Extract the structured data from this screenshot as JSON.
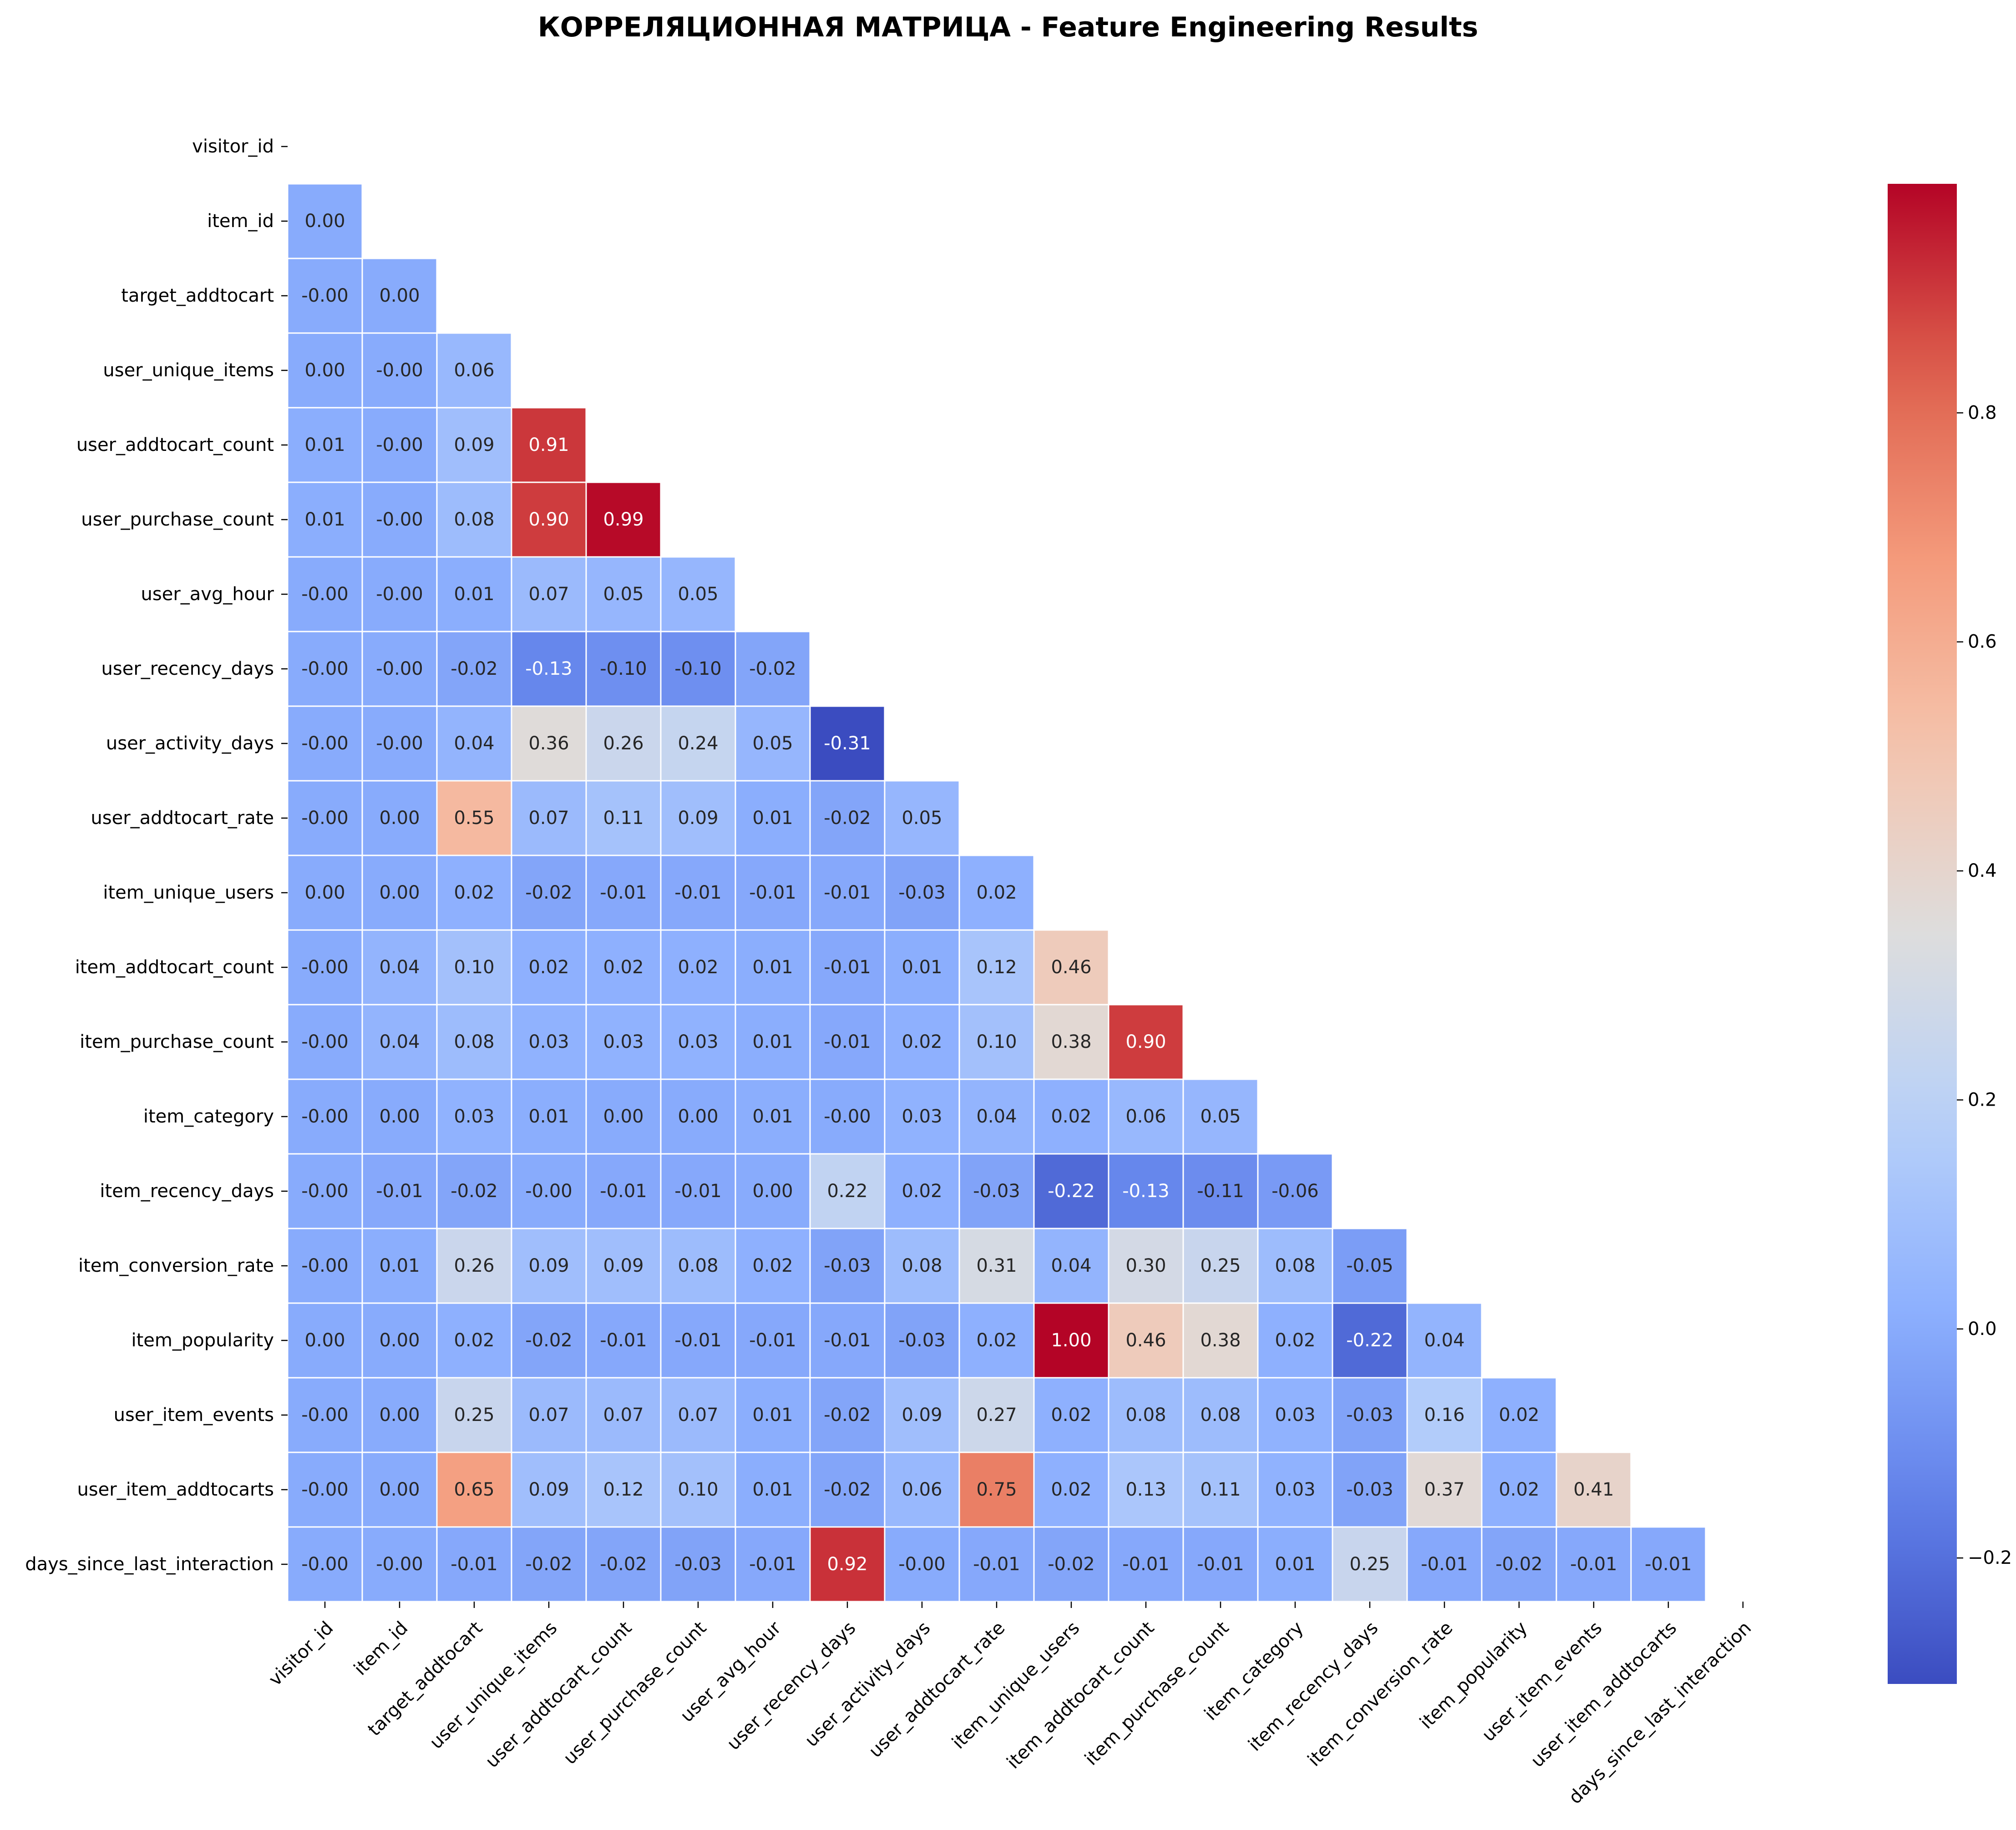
{
  "chart_data": {
    "type": "heatmap",
    "title": "КОРРЕЛЯЦИОННАЯ МАТРИЦА - Feature Engineering Results",
    "xlabel": "",
    "ylabel": "",
    "mask": "upper-triangle-including-diagonal",
    "colormap": "coolwarm",
    "color_range": [
      -0.31,
      1.0
    ],
    "colorbar_ticks": [
      "−0.2",
      "0.0",
      "0.2",
      "0.4",
      "0.6",
      "0.8"
    ],
    "colorbar_tick_values": [
      -0.2,
      0.0,
      0.2,
      0.4,
      0.6,
      0.8
    ],
    "labels": [
      "visitor_id",
      "item_id",
      "target_addtocart",
      "user_unique_items",
      "user_addtocart_count",
      "user_purchase_count",
      "user_avg_hour",
      "user_recency_days",
      "user_activity_days",
      "user_addtocart_rate",
      "item_unique_users",
      "item_addtocart_count",
      "item_purchase_count",
      "item_category",
      "item_recency_days",
      "item_conversion_rate",
      "item_popularity",
      "user_item_events",
      "user_item_addtocarts",
      "days_since_last_interaction"
    ],
    "values": [
      [],
      [
        "0.00"
      ],
      [
        "-0.00",
        "0.00"
      ],
      [
        "0.00",
        "-0.00",
        "0.06"
      ],
      [
        "0.01",
        "-0.00",
        "0.09",
        "0.91"
      ],
      [
        "0.01",
        "-0.00",
        "0.08",
        "0.90",
        "0.99"
      ],
      [
        "-0.00",
        "-0.00",
        "0.01",
        "0.07",
        "0.05",
        "0.05"
      ],
      [
        "-0.00",
        "-0.00",
        "-0.02",
        "-0.13",
        "-0.10",
        "-0.10",
        "-0.02"
      ],
      [
        "-0.00",
        "-0.00",
        "0.04",
        "0.36",
        "0.26",
        "0.24",
        "0.05",
        "-0.31"
      ],
      [
        "-0.00",
        "0.00",
        "0.55",
        "0.07",
        "0.11",
        "0.09",
        "0.01",
        "-0.02",
        "0.05"
      ],
      [
        "0.00",
        "0.00",
        "0.02",
        "-0.02",
        "-0.01",
        "-0.01",
        "-0.01",
        "-0.01",
        "-0.03",
        "0.02"
      ],
      [
        "-0.00",
        "0.04",
        "0.10",
        "0.02",
        "0.02",
        "0.02",
        "0.01",
        "-0.01",
        "0.01",
        "0.12",
        "0.46"
      ],
      [
        "-0.00",
        "0.04",
        "0.08",
        "0.03",
        "0.03",
        "0.03",
        "0.01",
        "-0.01",
        "0.02",
        "0.10",
        "0.38",
        "0.90"
      ],
      [
        "-0.00",
        "0.00",
        "0.03",
        "0.01",
        "0.00",
        "0.00",
        "0.01",
        "-0.00",
        "0.03",
        "0.04",
        "0.02",
        "0.06",
        "0.05"
      ],
      [
        "-0.00",
        "-0.01",
        "-0.02",
        "-0.00",
        "-0.01",
        "-0.01",
        "0.00",
        "0.22",
        "0.02",
        "-0.03",
        "-0.22",
        "-0.13",
        "-0.11",
        "-0.06"
      ],
      [
        "-0.00",
        "0.01",
        "0.26",
        "0.09",
        "0.09",
        "0.08",
        "0.02",
        "-0.03",
        "0.08",
        "0.31",
        "0.04",
        "0.30",
        "0.25",
        "0.08",
        "-0.05"
      ],
      [
        "0.00",
        "0.00",
        "0.02",
        "-0.02",
        "-0.01",
        "-0.01",
        "-0.01",
        "-0.01",
        "-0.03",
        "0.02",
        "1.00",
        "0.46",
        "0.38",
        "0.02",
        "-0.22",
        "0.04"
      ],
      [
        "-0.00",
        "0.00",
        "0.25",
        "0.07",
        "0.07",
        "0.07",
        "0.01",
        "-0.02",
        "0.09",
        "0.27",
        "0.02",
        "0.08",
        "0.08",
        "0.03",
        "-0.03",
        "0.16",
        "0.02"
      ],
      [
        "-0.00",
        "0.00",
        "0.65",
        "0.09",
        "0.12",
        "0.10",
        "0.01",
        "-0.02",
        "0.06",
        "0.75",
        "0.02",
        "0.13",
        "0.11",
        "0.03",
        "-0.03",
        "0.37",
        "0.02",
        "0.41"
      ],
      [
        "-0.00",
        "-0.00",
        "-0.01",
        "-0.02",
        "-0.02",
        "-0.03",
        "-0.01",
        "0.92",
        "-0.00",
        "-0.01",
        "-0.02",
        "-0.01",
        "-0.01",
        "0.01",
        "0.25",
        "-0.01",
        "-0.02",
        "-0.01",
        "-0.01"
      ]
    ]
  }
}
